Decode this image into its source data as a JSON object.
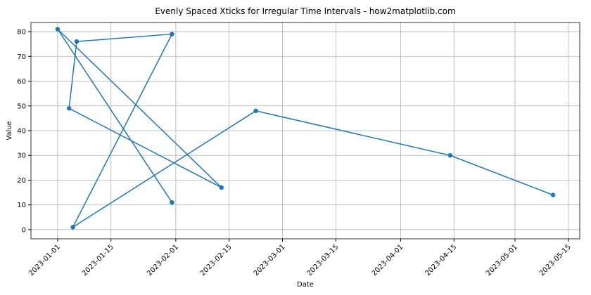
{
  "chart_data": {
    "type": "line",
    "title": "Evenly Spaced Xticks for Irregular Time Intervals - how2matplotlib.com",
    "x_label": "Date",
    "y_label": "Value",
    "x": [
      "2023-01-31",
      "2023-01-01",
      "2023-02-13",
      "2023-01-04",
      "2023-01-06",
      "2023-01-31",
      "2023-01-05",
      "2023-02-22",
      "2023-04-14",
      "2023-05-11"
    ],
    "series": [
      {
        "name": "Value",
        "color": "#1f77b4",
        "values": [
          11,
          81,
          17,
          49,
          76,
          79,
          1,
          48,
          30,
          14
        ]
      }
    ],
    "xlim": [
      "2022-12-25",
      "2023-05-18"
    ],
    "xticks": [
      "2023-01-01",
      "2023-01-15",
      "2023-02-01",
      "2023-02-15",
      "2023-03-01",
      "2023-03-15",
      "2023-04-01",
      "2023-04-15",
      "2023-05-01",
      "2023-05-15"
    ],
    "ylim": [
      -3.7,
      83.7
    ],
    "yticks": [
      0,
      10,
      20,
      30,
      40,
      50,
      60,
      70,
      80
    ],
    "grid": true
  }
}
